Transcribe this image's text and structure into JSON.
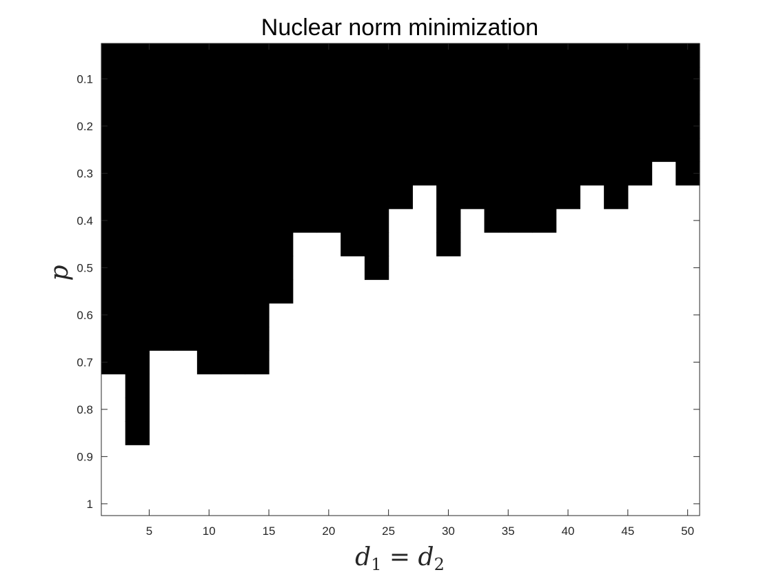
{
  "chart_data": {
    "type": "heatmap",
    "title": "Nuclear norm minimization",
    "xlabel": "d",
    "xlabel_sub1": "1",
    "xlabel_eq": " = ",
    "xlabel_sub2": "2",
    "ylabel": "p",
    "x_columns": [
      2,
      4,
      6,
      8,
      10,
      12,
      14,
      16,
      18,
      20,
      22,
      24,
      26,
      28,
      30,
      32,
      34,
      36,
      38,
      40,
      42,
      44,
      46,
      48,
      50
    ],
    "column_step": 2,
    "y_rows": [
      0.05,
      0.1,
      0.15,
      0.2,
      0.25,
      0.3,
      0.35,
      0.4,
      0.45,
      0.5,
      0.55,
      0.6,
      0.65,
      0.7,
      0.75,
      0.8,
      0.85,
      0.9,
      0.95,
      1.0
    ],
    "row_step": 0.05,
    "boundary_p": [
      0.7,
      0.85,
      0.65,
      0.65,
      0.7,
      0.7,
      0.7,
      0.55,
      0.4,
      0.4,
      0.45,
      0.5,
      0.35,
      0.3,
      0.45,
      0.35,
      0.4,
      0.4,
      0.4,
      0.35,
      0.3,
      0.35,
      0.3,
      0.25,
      0.3
    ],
    "boundary_rule": "cell is black (failure) when p <= boundary_p of its column, white (success) otherwise",
    "xlim": [
      1,
      51
    ],
    "ylim": [
      0.025,
      1.025
    ],
    "y_reversed": true,
    "xticks": [
      5,
      10,
      15,
      20,
      25,
      30,
      35,
      40,
      45,
      50
    ],
    "yticks": [
      0.1,
      0.2,
      0.3,
      0.4,
      0.5,
      0.6,
      0.7,
      0.8,
      0.9,
      1
    ],
    "xtick_labels": [
      "5",
      "10",
      "15",
      "20",
      "25",
      "30",
      "35",
      "40",
      "45",
      "50"
    ],
    "ytick_labels": [
      "0.1",
      "0.2",
      "0.3",
      "0.4",
      "0.5",
      "0.6",
      "0.7",
      "0.8",
      "0.9",
      "1"
    ],
    "colors": {
      "failure": "#000000",
      "success": "#ffffff",
      "axis": "#262626"
    },
    "grid": false
  }
}
